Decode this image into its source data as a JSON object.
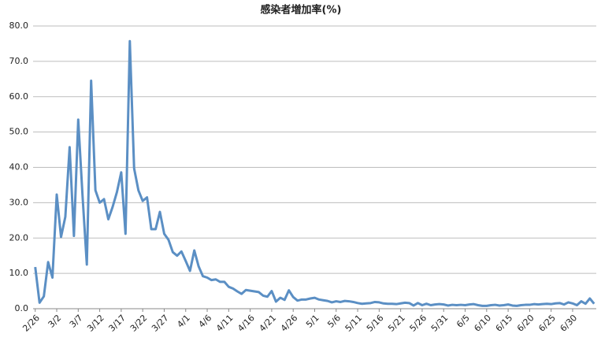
{
  "chart_data": {
    "type": "line",
    "title": "感染者増加率(%)",
    "categories": [
      "2/26",
      null,
      null,
      null,
      null,
      "3/2",
      null,
      null,
      null,
      null,
      "3/7",
      null,
      null,
      null,
      null,
      "3/12",
      null,
      null,
      null,
      null,
      "3/17",
      null,
      null,
      null,
      null,
      "3/22",
      null,
      null,
      null,
      null,
      "3/27",
      null,
      null,
      null,
      null,
      "4/1",
      null,
      null,
      null,
      null,
      "4/6",
      null,
      null,
      null,
      null,
      "4/11",
      null,
      null,
      null,
      null,
      "4/16",
      null,
      null,
      null,
      null,
      "4/21",
      null,
      null,
      null,
      null,
      "4/26",
      null,
      null,
      null,
      null,
      "5/1",
      null,
      null,
      null,
      null,
      "5/6",
      null,
      null,
      null,
      null,
      "5/11",
      null,
      null,
      null,
      null,
      "5/16",
      null,
      null,
      null,
      null,
      "5/21",
      null,
      null,
      null,
      null,
      "5/26",
      null,
      null,
      null,
      null,
      "5/31",
      null,
      null,
      null,
      null,
      "6/5",
      null,
      null,
      null,
      null,
      "6/10",
      null,
      null,
      null,
      null,
      "6/15",
      null,
      null,
      null,
      null,
      "6/20",
      null,
      null,
      null,
      null,
      "6/25",
      null,
      null,
      null,
      null,
      "6/30",
      null,
      null,
      null,
      null,
      null
    ],
    "values": [
      11.8,
      1.7,
      3.5,
      13.2,
      8.8,
      32.3,
      20.3,
      26,
      45.7,
      20.6,
      53.5,
      32,
      12.5,
      64.5,
      33.5,
      30,
      31,
      25.3,
      28.8,
      33,
      38.6,
      21.2,
      75.7,
      39.7,
      33.5,
      30.5,
      31.5,
      22.5,
      22.5,
      27.4,
      21.2,
      19.5,
      16,
      15,
      16.2,
      13.5,
      10.7,
      16.5,
      12,
      9.2,
      8.8,
      8.1,
      8.3,
      7.6,
      7.6,
      6.2,
      5.7,
      4.9,
      4.2,
      5.3,
      5.1,
      4.9,
      4.7,
      3.7,
      3.4,
      5,
      2,
      3.1,
      2.5,
      5.2,
      3.3,
      2.3,
      2.6,
      2.6,
      2.9,
      3.1,
      2.6,
      2.4,
      2.2,
      1.8,
      2.1,
      1.9,
      2.2,
      2.1,
      1.9,
      1.6,
      1.4,
      1.5,
      1.6,
      1.9,
      1.8,
      1.5,
      1.4,
      1.4,
      1.3,
      1.5,
      1.7,
      1.6,
      0.9,
      1.6,
      1,
      1.4,
      1,
      1.2,
      1.3,
      1.2,
      0.9,
      1.1,
      1,
      1.1,
      1,
      1.2,
      1.3,
      1,
      0.8,
      0.8,
      1,
      1.1,
      0.9,
      1,
      1.2,
      0.9,
      0.8,
      1,
      1.1,
      1.1,
      1.3,
      1.2,
      1.3,
      1.4,
      1.3,
      1.5,
      1.6,
      1.2,
      1.8,
      1.5,
      1,
      2.1,
      1.4,
      2.9,
      1.4
    ],
    "color": "#5b8fc4",
    "ylim": [
      0,
      80
    ],
    "yticks": [
      {
        "value": 0,
        "label": "0.0"
      },
      {
        "value": 10,
        "label": "10.0"
      },
      {
        "value": 20,
        "label": "20.0"
      },
      {
        "value": 30,
        "label": "30.0"
      },
      {
        "value": 40,
        "label": "40.0"
      },
      {
        "value": 50,
        "label": "50.0"
      },
      {
        "value": 60,
        "label": "60.0"
      },
      {
        "value": 70,
        "label": "70.0"
      },
      {
        "value": 80,
        "label": "80.0"
      }
    ],
    "grid": true
  }
}
